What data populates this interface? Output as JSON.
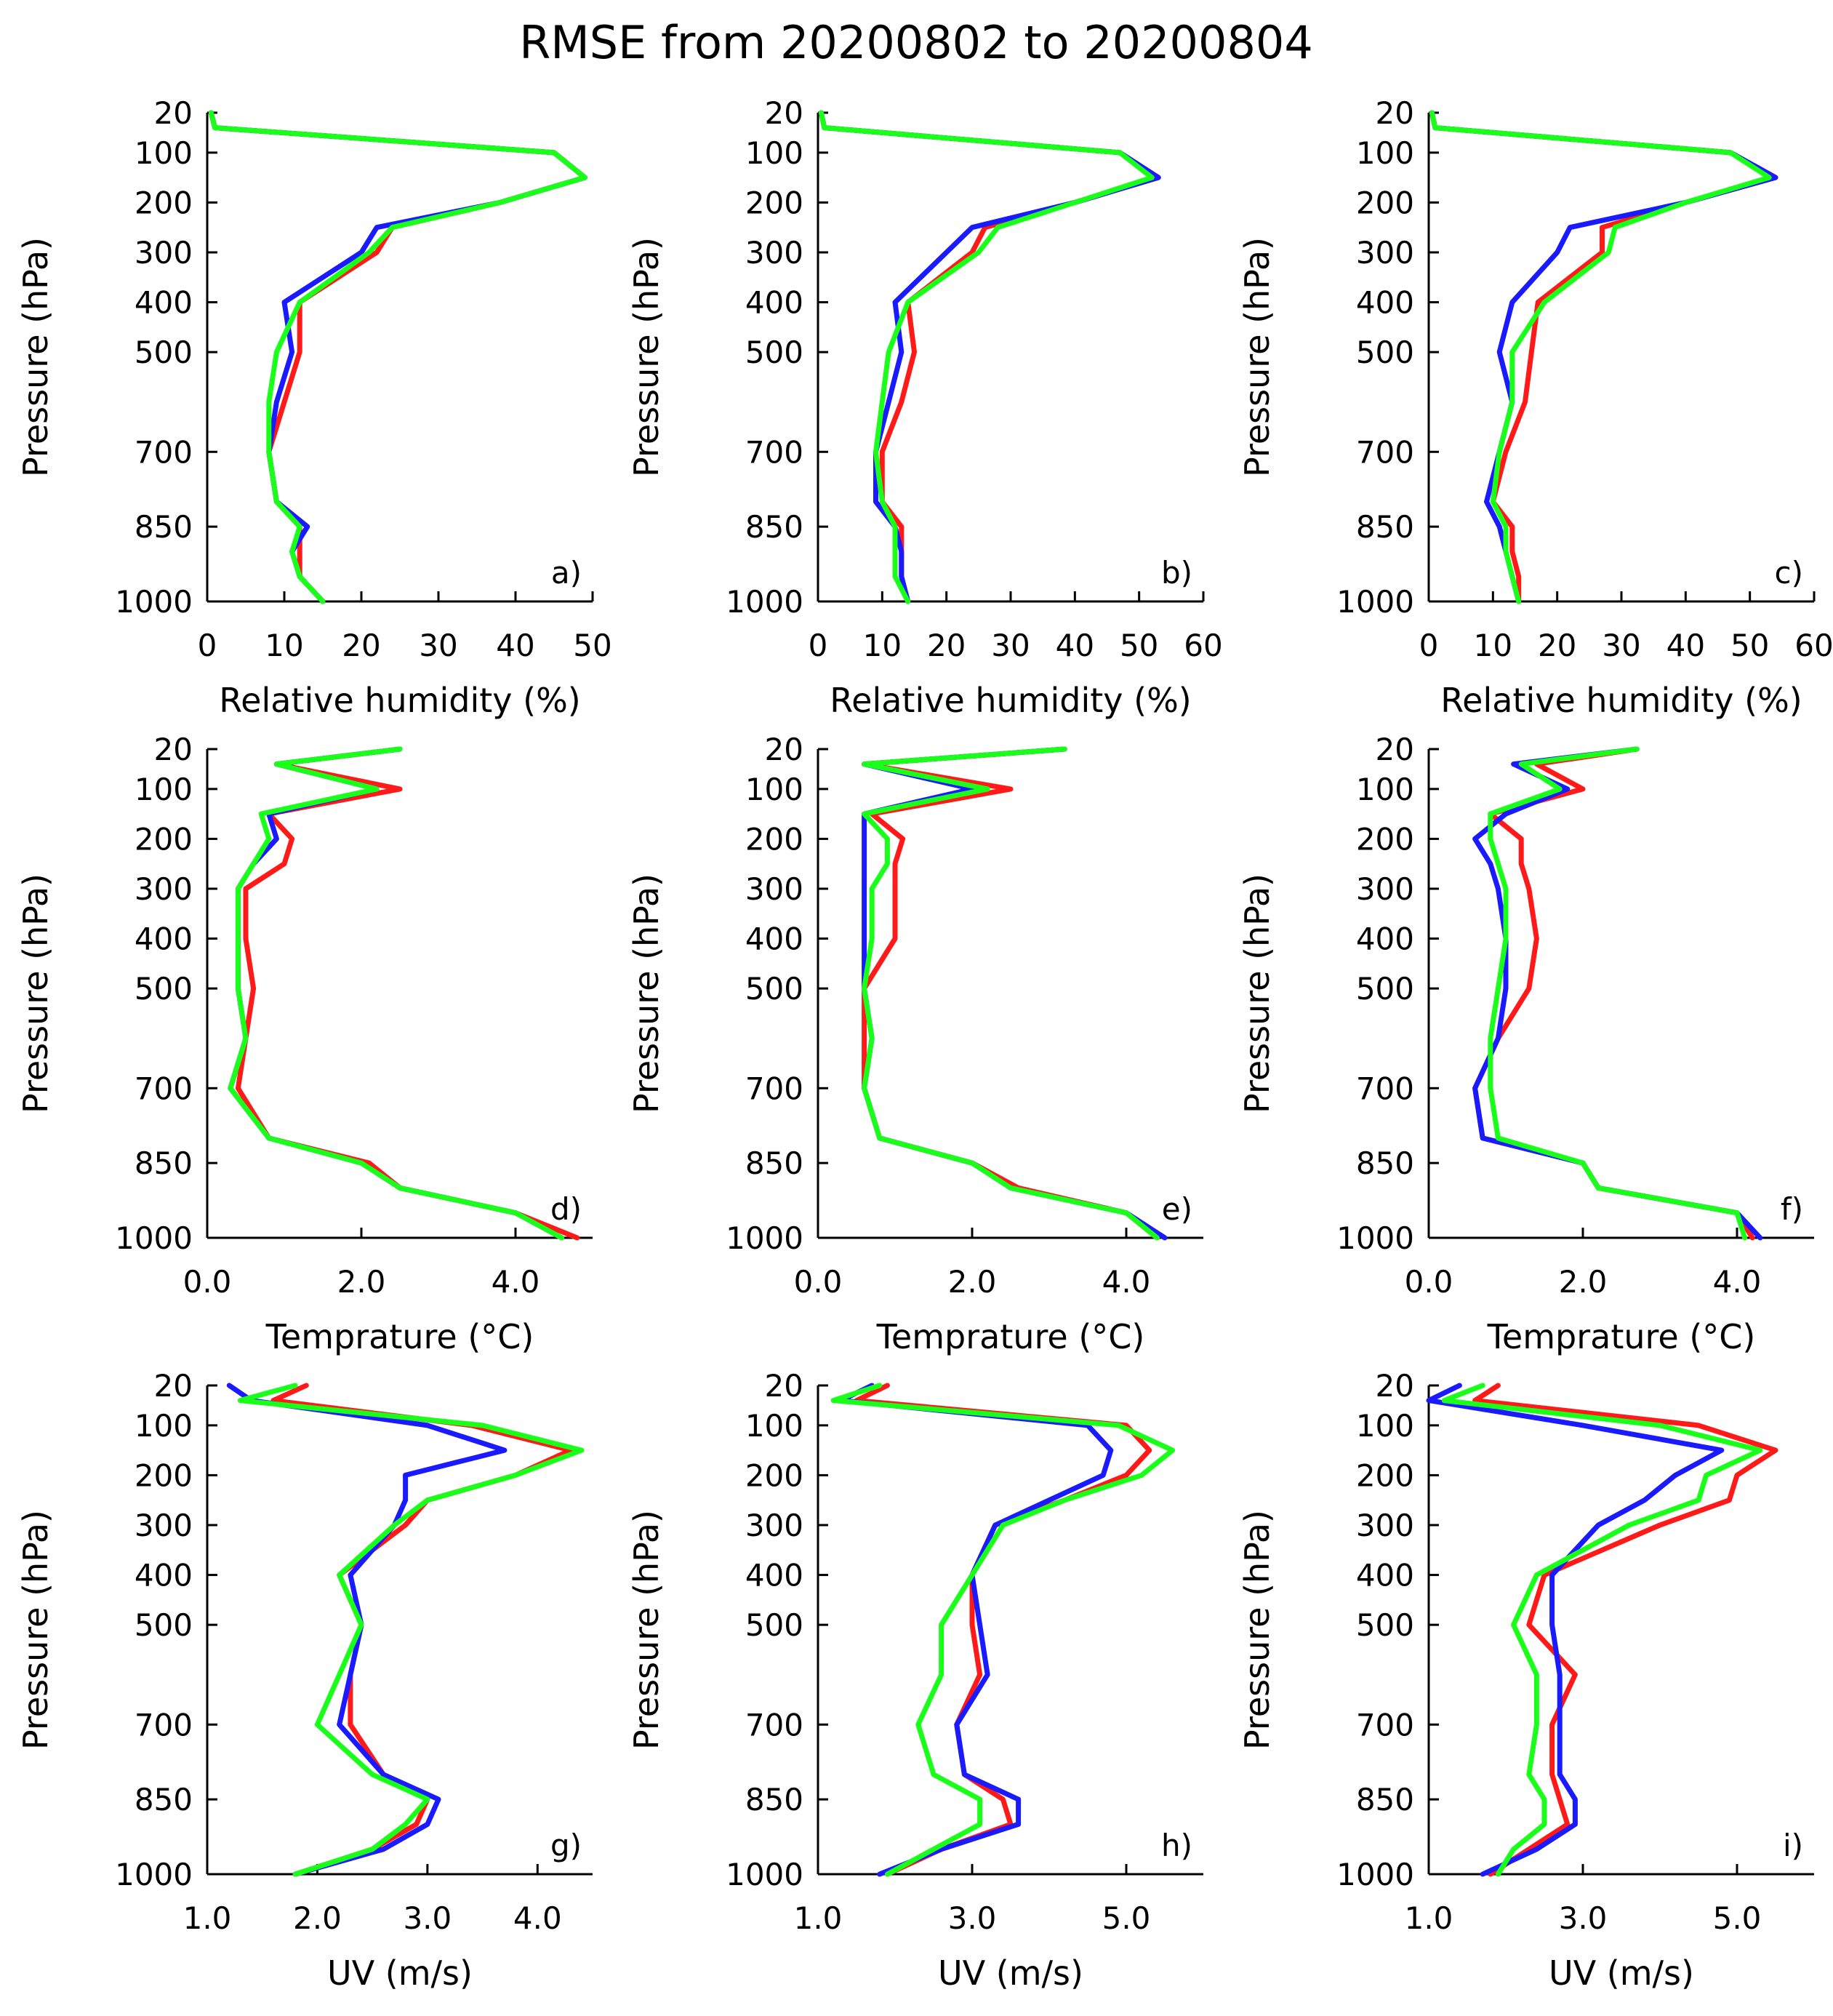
{
  "figure_title": "RMSE from 20200802 to 20200804",
  "series_colors": [
    "#ff1a1a",
    "#1a1aff",
    "#1aff1a"
  ],
  "chart_data": [
    {
      "type": "line",
      "panel_label": "a)",
      "xlabel": "Relative humidity (%)",
      "ylabel": "Pressure (hPa)",
      "xlim": [
        0,
        50
      ],
      "xticks": [
        0,
        10,
        20,
        30,
        40,
        50
      ],
      "xtick_labels": [
        "0",
        "10",
        "20",
        "30",
        "40",
        "50"
      ],
      "ylim": [
        20,
        1000
      ],
      "yticks": [
        20,
        100,
        200,
        300,
        400,
        500,
        700,
        850,
        1000
      ],
      "ytick_labels": [
        "20",
        "100",
        "200",
        "300",
        "400",
        "500",
        "700",
        "850",
        "1000"
      ],
      "levels": [
        20,
        50,
        100,
        150,
        200,
        250,
        300,
        400,
        500,
        600,
        700,
        800,
        850,
        900,
        950,
        1000
      ],
      "series": [
        {
          "color": "#ff1a1a",
          "values": [
            0.5,
            1,
            45,
            49,
            38,
            24,
            22,
            12,
            12,
            10,
            8,
            9,
            12,
            12,
            12,
            15
          ]
        },
        {
          "color": "#1a1aff",
          "values": [
            0.5,
            1,
            45,
            49,
            38,
            22,
            20,
            10,
            11,
            9,
            8,
            9,
            13,
            11,
            12,
            15
          ]
        },
        {
          "color": "#1aff1a",
          "values": [
            0.5,
            1,
            45,
            49,
            38,
            24,
            21,
            12,
            9,
            8,
            8,
            9,
            12,
            11,
            12,
            15
          ]
        }
      ]
    },
    {
      "type": "line",
      "panel_label": "d)",
      "xlabel": "Temprature (°C)",
      "ylabel": "Pressure (hPa)",
      "xlim": [
        0,
        5
      ],
      "xticks": [
        0,
        2,
        4
      ],
      "xtick_labels": [
        "0.0",
        "2.0",
        "4.0"
      ],
      "ylim": [
        20,
        1000
      ],
      "yticks": [
        20,
        100,
        200,
        300,
        400,
        500,
        700,
        850,
        1000
      ],
      "ytick_labels": [
        "20",
        "100",
        "200",
        "300",
        "400",
        "500",
        "700",
        "850",
        "1000"
      ],
      "levels": [
        20,
        50,
        100,
        150,
        200,
        250,
        300,
        400,
        500,
        600,
        700,
        800,
        850,
        900,
        950,
        1000
      ],
      "series": [
        {
          "color": "#ff1a1a",
          "values": [
            2.5,
            0.9,
            2.5,
            0.8,
            1.1,
            1.0,
            0.5,
            0.5,
            0.6,
            0.5,
            0.4,
            0.8,
            2.1,
            2.5,
            4.0,
            4.8
          ]
        },
        {
          "color": "#1a1aff",
          "values": [
            2.5,
            0.9,
            2.2,
            0.8,
            0.9,
            0.6,
            0.4,
            0.4,
            0.4,
            0.5,
            0.3,
            0.8,
            2.0,
            2.5,
            4.0,
            4.6
          ]
        },
        {
          "color": "#1aff1a",
          "values": [
            2.5,
            0.9,
            2.2,
            0.7,
            0.8,
            0.6,
            0.4,
            0.4,
            0.4,
            0.5,
            0.3,
            0.8,
            2.0,
            2.5,
            4.0,
            4.6
          ]
        }
      ]
    },
    {
      "type": "line",
      "panel_label": "g)",
      "xlabel": "UV (m/s)",
      "ylabel": "Pressure (hPa)",
      "xlim": [
        1,
        4.5
      ],
      "xticks": [
        1,
        2,
        3,
        4
      ],
      "xtick_labels": [
        "1.0",
        "2.0",
        "3.0",
        "4.0"
      ],
      "ylim": [
        20,
        1000
      ],
      "yticks": [
        20,
        100,
        200,
        300,
        400,
        500,
        700,
        850,
        1000
      ],
      "ytick_labels": [
        "20",
        "100",
        "200",
        "300",
        "400",
        "500",
        "700",
        "850",
        "1000"
      ],
      "levels": [
        20,
        50,
        100,
        150,
        200,
        250,
        300,
        400,
        500,
        600,
        700,
        800,
        850,
        900,
        950,
        1000
      ],
      "series": [
        {
          "color": "#ff1a1a",
          "values": [
            1.9,
            1.6,
            3.4,
            4.3,
            3.8,
            3.0,
            2.8,
            2.2,
            2.4,
            2.3,
            2.3,
            2.6,
            3.0,
            2.9,
            2.5,
            1.8
          ]
        },
        {
          "color": "#1a1aff",
          "values": [
            1.2,
            1.4,
            3.0,
            3.7,
            2.8,
            2.8,
            2.7,
            2.3,
            2.4,
            2.3,
            2.2,
            2.6,
            3.1,
            3.0,
            2.6,
            1.8
          ]
        },
        {
          "color": "#1aff1a",
          "values": [
            1.8,
            1.3,
            3.5,
            4.4,
            3.8,
            3.0,
            2.7,
            2.2,
            2.4,
            2.2,
            2.0,
            2.5,
            3.0,
            2.8,
            2.5,
            1.8
          ]
        }
      ]
    },
    {
      "type": "line",
      "panel_label": "b)",
      "xlabel": "Relative humidity (%)",
      "ylabel": "Pressure (hPa)",
      "xlim": [
        0,
        60
      ],
      "xticks": [
        0,
        10,
        20,
        30,
        40,
        50,
        60
      ],
      "xtick_labels": [
        "0",
        "10",
        "20",
        "30",
        "40",
        "50",
        "60"
      ],
      "ylim": [
        20,
        1000
      ],
      "yticks": [
        20,
        100,
        200,
        300,
        400,
        500,
        700,
        850,
        1000
      ],
      "ytick_labels": [
        "20",
        "100",
        "200",
        "300",
        "400",
        "500",
        "700",
        "850",
        "1000"
      ],
      "levels": [
        20,
        50,
        100,
        150,
        200,
        250,
        300,
        400,
        500,
        600,
        700,
        800,
        850,
        900,
        950,
        1000
      ],
      "series": [
        {
          "color": "#ff1a1a",
          "values": [
            0.5,
            1,
            47,
            53,
            40,
            26,
            24,
            14,
            15,
            13,
            10,
            10,
            13,
            13,
            13,
            14
          ]
        },
        {
          "color": "#1a1aff",
          "values": [
            0.5,
            1,
            47,
            53,
            40,
            24,
            20,
            12,
            13,
            11,
            9,
            9,
            12,
            13,
            13,
            14
          ]
        },
        {
          "color": "#1aff1a",
          "values": [
            0.5,
            1,
            47,
            52,
            40,
            28,
            25,
            14,
            11,
            10,
            9,
            10,
            12,
            12,
            12,
            14
          ]
        }
      ]
    },
    {
      "type": "line",
      "panel_label": "e)",
      "xlabel": "Temprature (°C)",
      "ylabel": "Pressure (hPa)",
      "xlim": [
        0,
        5
      ],
      "xticks": [
        0,
        2,
        4
      ],
      "xtick_labels": [
        "0.0",
        "2.0",
        "4.0"
      ],
      "ylim": [
        20,
        1000
      ],
      "yticks": [
        20,
        100,
        200,
        300,
        400,
        500,
        700,
        850,
        1000
      ],
      "ytick_labels": [
        "20",
        "100",
        "200",
        "300",
        "400",
        "500",
        "700",
        "850",
        "1000"
      ],
      "levels": [
        20,
        50,
        100,
        150,
        200,
        250,
        300,
        400,
        500,
        600,
        700,
        800,
        850,
        900,
        950,
        1000
      ],
      "series": [
        {
          "color": "#ff1a1a",
          "values": [
            3.2,
            0.6,
            2.5,
            0.7,
            1.1,
            1.0,
            1.0,
            1.0,
            0.6,
            0.6,
            0.6,
            0.8,
            2.0,
            2.6,
            4.0,
            4.4
          ]
        },
        {
          "color": "#1a1aff",
          "values": [
            3.2,
            0.6,
            2.0,
            0.6,
            0.6,
            0.6,
            0.6,
            0.6,
            0.6,
            0.7,
            0.6,
            0.8,
            2.0,
            2.5,
            4.0,
            4.5
          ]
        },
        {
          "color": "#1aff1a",
          "values": [
            3.2,
            0.6,
            2.2,
            0.6,
            0.9,
            0.9,
            0.7,
            0.7,
            0.6,
            0.7,
            0.6,
            0.8,
            2.0,
            2.5,
            4.0,
            4.4
          ]
        }
      ]
    },
    {
      "type": "line",
      "panel_label": "h)",
      "xlabel": "UV (m/s)",
      "ylabel": "Pressure (hPa)",
      "xlim": [
        1,
        6
      ],
      "xticks": [
        1,
        3,
        5
      ],
      "xtick_labels": [
        "1.0",
        "3.0",
        "5.0"
      ],
      "ylim": [
        20,
        1000
      ],
      "yticks": [
        20,
        100,
        200,
        300,
        400,
        500,
        700,
        850,
        1000
      ],
      "ytick_labels": [
        "20",
        "100",
        "200",
        "300",
        "400",
        "500",
        "700",
        "850",
        "1000"
      ],
      "levels": [
        20,
        50,
        100,
        150,
        200,
        250,
        300,
        400,
        500,
        600,
        700,
        800,
        850,
        900,
        950,
        1000
      ],
      "series": [
        {
          "color": "#ff1a1a",
          "values": [
            1.9,
            1.5,
            5.0,
            5.3,
            5.0,
            4.2,
            3.3,
            3.0,
            3.0,
            3.1,
            2.8,
            2.9,
            3.4,
            3.5,
            2.6,
            1.9
          ]
        },
        {
          "color": "#1a1aff",
          "values": [
            1.7,
            1.3,
            4.5,
            4.8,
            4.7,
            4.0,
            3.3,
            3.0,
            3.1,
            3.2,
            2.8,
            2.9,
            3.6,
            3.6,
            2.6,
            1.8
          ]
        },
        {
          "color": "#1aff1a",
          "values": [
            1.8,
            1.2,
            4.9,
            5.6,
            5.2,
            4.2,
            3.4,
            3.0,
            2.6,
            2.6,
            2.3,
            2.5,
            3.1,
            3.1,
            2.5,
            1.9
          ]
        }
      ]
    },
    {
      "type": "line",
      "panel_label": "c)",
      "xlabel": "Relative humidity (%)",
      "ylabel": "Pressure (hPa)",
      "xlim": [
        0,
        60
      ],
      "xticks": [
        0,
        10,
        20,
        30,
        40,
        50,
        60
      ],
      "xtick_labels": [
        "0",
        "10",
        "20",
        "30",
        "40",
        "50",
        "60"
      ],
      "ylim": [
        20,
        1000
      ],
      "yticks": [
        20,
        100,
        200,
        300,
        400,
        500,
        700,
        850,
        1000
      ],
      "ytick_labels": [
        "20",
        "100",
        "200",
        "300",
        "400",
        "500",
        "700",
        "850",
        "1000"
      ],
      "levels": [
        20,
        50,
        100,
        150,
        200,
        250,
        300,
        400,
        500,
        600,
        700,
        800,
        850,
        900,
        950,
        1000
      ],
      "series": [
        {
          "color": "#ff1a1a",
          "values": [
            0.5,
            1,
            47,
            54,
            40,
            27,
            27,
            17,
            16,
            15,
            12,
            10,
            13,
            13,
            14,
            14
          ]
        },
        {
          "color": "#1a1aff",
          "values": [
            0.5,
            1,
            47,
            54,
            40,
            22,
            20,
            13,
            11,
            13,
            11,
            9,
            11,
            12,
            13,
            14
          ]
        },
        {
          "color": "#1aff1a",
          "values": [
            0.5,
            1,
            47,
            53,
            40,
            29,
            28,
            18,
            13,
            13,
            11,
            10,
            12,
            12,
            13,
            14
          ]
        }
      ]
    },
    {
      "type": "line",
      "panel_label": "f)",
      "xlabel": "Temprature (°C)",
      "ylabel": "Pressure (hPa)",
      "xlim": [
        0,
        5
      ],
      "xticks": [
        0,
        2,
        4
      ],
      "xtick_labels": [
        "0.0",
        "2.0",
        "4.0"
      ],
      "ylim": [
        20,
        1000
      ],
      "yticks": [
        20,
        100,
        200,
        300,
        400,
        500,
        700,
        850,
        1000
      ],
      "ytick_labels": [
        "20",
        "100",
        "200",
        "300",
        "400",
        "500",
        "700",
        "850",
        "1000"
      ],
      "levels": [
        20,
        50,
        100,
        150,
        200,
        250,
        300,
        400,
        500,
        600,
        700,
        800,
        850,
        900,
        950,
        1000
      ],
      "series": [
        {
          "color": "#ff1a1a",
          "values": [
            2.7,
            1.4,
            2.0,
            0.8,
            1.2,
            1.2,
            1.3,
            1.4,
            1.3,
            0.9,
            0.6,
            0.7,
            2.0,
            2.2,
            4.0,
            4.2
          ]
        },
        {
          "color": "#1a1aff",
          "values": [
            2.7,
            1.1,
            1.8,
            1.0,
            0.6,
            0.8,
            0.9,
            1.0,
            1.0,
            0.9,
            0.6,
            0.7,
            2.0,
            2.2,
            4.0,
            4.3
          ]
        },
        {
          "color": "#1aff1a",
          "values": [
            2.7,
            1.2,
            1.7,
            0.8,
            0.8,
            0.9,
            1.0,
            1.0,
            0.9,
            0.8,
            0.8,
            0.9,
            2.0,
            2.2,
            4.0,
            4.1
          ]
        }
      ]
    },
    {
      "type": "line",
      "panel_label": "i)",
      "xlabel": "UV (m/s)",
      "ylabel": "Pressure (hPa)",
      "xlim": [
        1,
        6
      ],
      "xticks": [
        1,
        3,
        5
      ],
      "xtick_labels": [
        "1.0",
        "3.0",
        "5.0"
      ],
      "ylim": [
        20,
        1000
      ],
      "yticks": [
        20,
        100,
        200,
        300,
        400,
        500,
        700,
        850,
        1000
      ],
      "ytick_labels": [
        "20",
        "100",
        "200",
        "300",
        "400",
        "500",
        "700",
        "850",
        "1000"
      ],
      "levels": [
        20,
        50,
        100,
        150,
        200,
        250,
        300,
        400,
        500,
        600,
        700,
        800,
        850,
        900,
        950,
        1000
      ],
      "series": [
        {
          "color": "#ff1a1a",
          "values": [
            1.9,
            1.6,
            4.5,
            5.5,
            5.0,
            4.9,
            4.0,
            2.5,
            2.3,
            2.9,
            2.6,
            2.6,
            2.7,
            2.8,
            2.3,
            1.8
          ]
        },
        {
          "color": "#1a1aff",
          "values": [
            1.4,
            1.0,
            3.0,
            4.8,
            4.2,
            3.8,
            3.2,
            2.6,
            2.6,
            2.7,
            2.7,
            2.7,
            2.9,
            2.9,
            2.4,
            1.7
          ]
        },
        {
          "color": "#1aff1a",
          "values": [
            1.7,
            1.2,
            4.0,
            5.3,
            4.6,
            4.5,
            3.6,
            2.4,
            2.1,
            2.4,
            2.4,
            2.3,
            2.5,
            2.5,
            2.1,
            1.9
          ]
        }
      ]
    }
  ]
}
